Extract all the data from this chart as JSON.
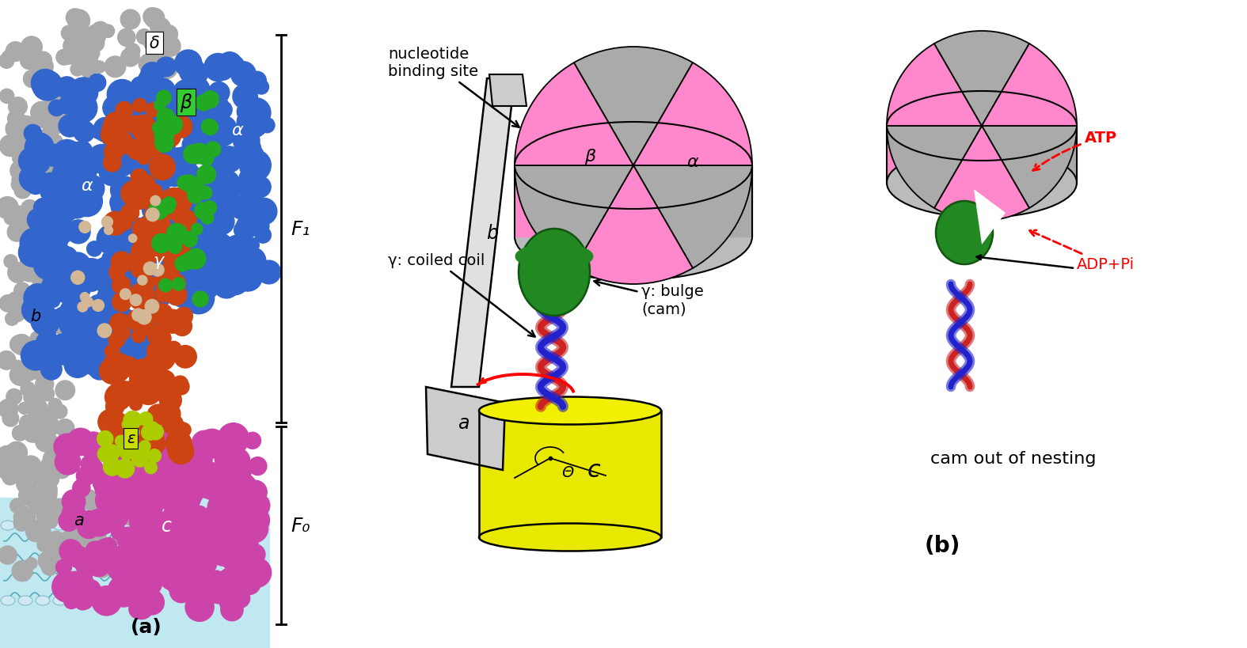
{
  "background_color": "#ffffff",
  "figsize": [
    15.75,
    8.2
  ],
  "dpi": 100,
  "panel_a_label": "(a)",
  "panel_b_label": "(b)",
  "F1_label": "F₁",
  "F0_label": "F₀",
  "nucleotide_binding_site": "nucleotide\nbinding site",
  "gamma_coiled_coil": "γ: coiled coil",
  "gamma_bulge": "γ: bulge\n(cam)",
  "atp_label": "ATP",
  "adp_pi_label": "ADP+Pi",
  "cam_out": "cam out of nesting",
  "theta_label": "Θ",
  "c_label": "c",
  "b_label": "b",
  "a_label": "a",
  "beta_label": "β",
  "alpha_label": "α",
  "delta_label": "δ",
  "gamma_label": "γ",
  "epsilon_label": "ε",
  "colors": {
    "gray": "#aaaaaa",
    "blue": "#3366cc",
    "orange_red": "#cc4411",
    "green": "#22aa22",
    "yellow_green": "#aacc00",
    "magenta": "#cc44aa",
    "beige": "#d4b896",
    "yellow": "#e8e800",
    "yellow_light": "#f0f000",
    "pink": "#ff88bb",
    "dark_gray": "#888888",
    "light_gray": "#cccccc",
    "white_gray": "#e0e0e0",
    "membrane_blue": "#c0e8f0",
    "red": "#dd2222",
    "dark_blue": "#2222cc"
  }
}
